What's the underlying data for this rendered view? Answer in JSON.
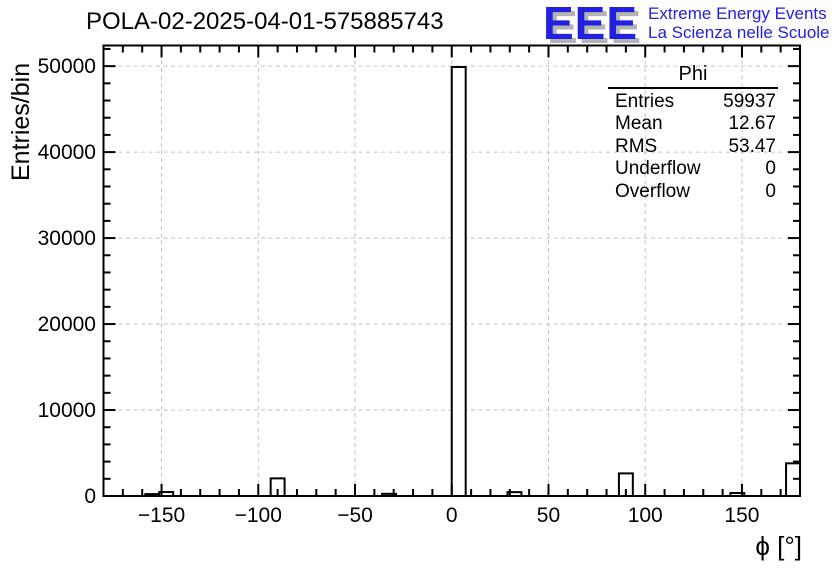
{
  "header": {
    "title": "POLA-02-2025-04-01-575885743"
  },
  "logo": {
    "acronym": "EEE",
    "line1": "Extreme Energy Events",
    "line2": "La Scienza nelle Scuole",
    "color": "#2121df",
    "shadow_color": "#b4b4b4"
  },
  "stats": {
    "header": "Phi",
    "rows": [
      {
        "label": "Entries",
        "value": "59937"
      },
      {
        "label": "Mean",
        "value": "12.67"
      },
      {
        "label": "RMS",
        "value": "53.47"
      },
      {
        "label": "Underflow",
        "value": "0"
      },
      {
        "label": "Overflow",
        "value": "0"
      }
    ]
  },
  "chart_data": {
    "type": "bar",
    "title": "POLA-02-2025-04-01-575885743",
    "xlabel": "ϕ [°]",
    "ylabel": "Entries/bin",
    "xlim": [
      -180,
      180
    ],
    "ylim": [
      0,
      52400
    ],
    "bin_width": 7.2,
    "bars": [
      {
        "center": -154.8,
        "value": 220
      },
      {
        "center": -147.6,
        "value": 460
      },
      {
        "center": -90.0,
        "value": 2050
      },
      {
        "center": -32.4,
        "value": 250
      },
      {
        "center": 3.6,
        "value": 49900
      },
      {
        "center": 32.4,
        "value": 450
      },
      {
        "center": 90.0,
        "value": 2630
      },
      {
        "center": 147.6,
        "value": 350
      },
      {
        "center": 176.4,
        "value": 3800
      }
    ],
    "x_major_ticks": [
      -150,
      -100,
      -50,
      0,
      50,
      100,
      150
    ],
    "x_minor_step": 10,
    "y_major_ticks": [
      0,
      10000,
      20000,
      30000,
      40000,
      50000
    ],
    "y_minor_step": 2000,
    "grid": true,
    "grid_color": "#c2c2c2",
    "axis_color": "#000000",
    "bar_stroke": "#000000",
    "bar_fill": "#ffffff",
    "legend_position": "none"
  }
}
